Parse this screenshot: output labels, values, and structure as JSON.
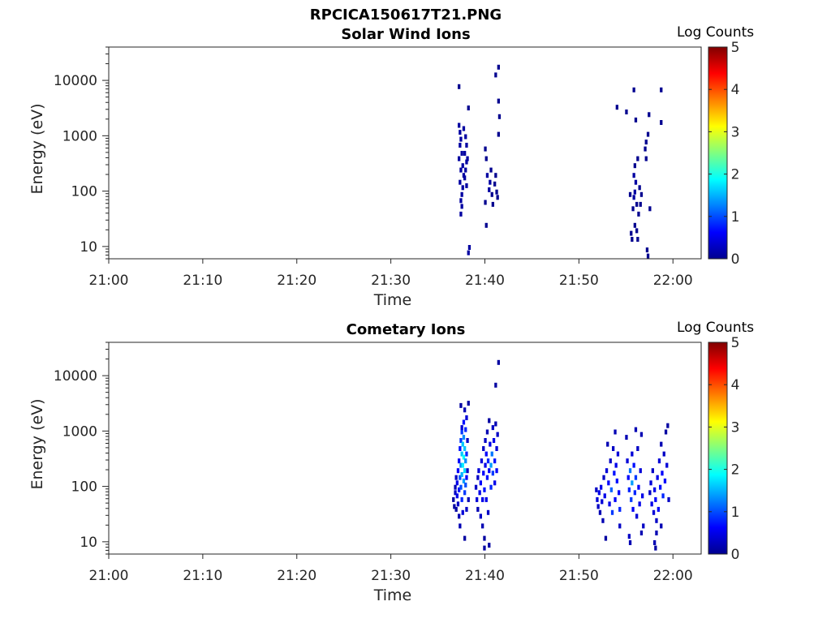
{
  "figure": {
    "title": "RPCICA150617T21.PNG"
  },
  "colors": {
    "axis": "#262626",
    "colormap": [
      "#00008f",
      "#0000ff",
      "#0080ff",
      "#00ffff",
      "#80ff80",
      "#ffff00",
      "#ff8000",
      "#ff0000",
      "#800000"
    ]
  },
  "chart_data": [
    {
      "type": "heatmap",
      "title": "Solar Wind Ions",
      "xlabel": "Time",
      "ylabel": "Energy (eV)",
      "x_ticks": [
        "21:00",
        "21:10",
        "21:20",
        "21:30",
        "21:40",
        "21:50",
        "22:00"
      ],
      "y_ticks": [
        "10",
        "100",
        "1000",
        "10000"
      ],
      "y_scale": "log",
      "xlim": [
        "21:00",
        "22:03"
      ],
      "ylim": [
        6,
        40000
      ],
      "colorbar": {
        "label": "Log Counts",
        "ticks": [
          "0",
          "1",
          "2",
          "3",
          "4",
          "5"
        ],
        "range": [
          0,
          5
        ]
      },
      "cells": [
        [
          37.2,
          8000,
          0
        ],
        [
          37.2,
          1600,
          0.1
        ],
        [
          37.3,
          1200,
          0.1
        ],
        [
          37.4,
          900,
          0.1
        ],
        [
          37.3,
          700,
          0.1
        ],
        [
          37.5,
          500,
          0.1
        ],
        [
          37.2,
          400,
          0.1
        ],
        [
          37.6,
          300,
          0.1
        ],
        [
          37.4,
          250,
          0.1
        ],
        [
          37.7,
          200,
          0.1
        ],
        [
          37.3,
          150,
          0.1
        ],
        [
          37.6,
          120,
          0.1
        ],
        [
          37.5,
          90,
          0.1
        ],
        [
          37.4,
          70,
          0.1
        ],
        [
          37.5,
          55,
          0.1
        ],
        [
          37.4,
          40,
          0.1
        ],
        [
          37.9,
          1000,
          0.1
        ],
        [
          38.0,
          700,
          0.1
        ],
        [
          37.8,
          500,
          0.1
        ],
        [
          38.0,
          350,
          0.1
        ],
        [
          37.9,
          250,
          0.1
        ],
        [
          37.8,
          180,
          0.1
        ],
        [
          38.0,
          130,
          0.1
        ],
        [
          37.7,
          1400,
          0.1
        ],
        [
          38.1,
          400,
          0.1
        ],
        [
          38.2,
          3300,
          0
        ],
        [
          38.3,
          10,
          0.1
        ],
        [
          38.2,
          8,
          0.1
        ],
        [
          40.0,
          600,
          0
        ],
        [
          40.1,
          400,
          0
        ],
        [
          40.2,
          200,
          0.1
        ],
        [
          40.5,
          150,
          0.1
        ],
        [
          40.4,
          110,
          0.1
        ],
        [
          40.6,
          250,
          0
        ],
        [
          40.7,
          90,
          0
        ],
        [
          40.8,
          60,
          0
        ],
        [
          40.0,
          65,
          0
        ],
        [
          40.1,
          25,
          0
        ],
        [
          41.0,
          140,
          0
        ],
        [
          41.2,
          100,
          0
        ],
        [
          41.3,
          80,
          0
        ],
        [
          41.1,
          200,
          0
        ],
        [
          41.4,
          18000,
          0
        ],
        [
          41.1,
          13000,
          0
        ],
        [
          41.5,
          2300,
          0
        ],
        [
          41.4,
          1100,
          0
        ],
        [
          41.4,
          4400,
          0
        ],
        [
          54.0,
          3400,
          0
        ],
        [
          55.0,
          2800,
          0
        ],
        [
          56.0,
          2000,
          0
        ],
        [
          55.8,
          7000,
          0
        ],
        [
          56.2,
          400,
          0
        ],
        [
          55.9,
          300,
          0
        ],
        [
          55.8,
          200,
          0.1
        ],
        [
          56.0,
          150,
          0.1
        ],
        [
          55.9,
          100,
          0.1
        ],
        [
          55.8,
          80,
          0.1
        ],
        [
          56.1,
          60,
          0
        ],
        [
          55.7,
          50,
          0
        ],
        [
          56.3,
          40,
          0
        ],
        [
          55.9,
          25,
          0
        ],
        [
          56.1,
          20,
          0
        ],
        [
          56.2,
          14,
          0
        ],
        [
          56.4,
          120,
          0
        ],
        [
          56.6,
          90,
          0
        ],
        [
          56.5,
          60,
          0
        ],
        [
          57.1,
          800,
          0
        ],
        [
          57.0,
          600,
          0
        ],
        [
          57.1,
          400,
          0
        ],
        [
          57.3,
          1100,
          0
        ],
        [
          57.4,
          2500,
          0
        ],
        [
          57.2,
          9,
          0
        ],
        [
          57.3,
          7,
          0
        ],
        [
          55.6,
          14,
          0
        ],
        [
          55.5,
          18,
          0
        ],
        [
          55.4,
          90,
          0
        ],
        [
          57.5,
          50,
          0
        ],
        [
          58.7,
          1800,
          0
        ],
        [
          58.7,
          7000,
          0
        ]
      ]
    },
    {
      "type": "heatmap",
      "title": "Cometary Ions",
      "xlabel": "Time",
      "ylabel": "Energy (eV)",
      "x_ticks": [
        "21:00",
        "21:10",
        "21:20",
        "21:30",
        "21:40",
        "21:50",
        "22:00"
      ],
      "y_ticks": [
        "10",
        "100",
        "1000",
        "10000"
      ],
      "y_scale": "log",
      "xlim": [
        "21:00",
        "22:03"
      ],
      "ylim": [
        6,
        40000
      ],
      "colorbar": {
        "label": "Log Counts",
        "ticks": [
          "0",
          "1",
          "2",
          "3",
          "4",
          "5"
        ],
        "range": [
          0,
          5
        ]
      },
      "cells": [
        [
          36.6,
          60,
          0.1
        ],
        [
          36.7,
          45,
          0.1
        ],
        [
          36.8,
          100,
          0.2
        ],
        [
          36.8,
          80,
          0.3
        ],
        [
          36.9,
          40,
          0.1
        ],
        [
          36.9,
          150,
          0.3
        ],
        [
          37.0,
          70,
          0.5
        ],
        [
          37.0,
          120,
          0.5
        ],
        [
          37.1,
          200,
          0.6
        ],
        [
          37.1,
          50,
          0.3
        ],
        [
          37.2,
          300,
          0.6
        ],
        [
          37.2,
          90,
          0.7
        ],
        [
          37.2,
          30,
          0.2
        ],
        [
          37.3,
          500,
          0.7
        ],
        [
          37.3,
          150,
          1.0
        ],
        [
          37.3,
          20,
          0.2
        ],
        [
          37.4,
          700,
          0.9
        ],
        [
          37.4,
          250,
          1.3
        ],
        [
          37.4,
          100,
          1.0
        ],
        [
          37.5,
          1000,
          0.9
        ],
        [
          37.5,
          400,
          1.6
        ],
        [
          37.5,
          170,
          1.5
        ],
        [
          37.5,
          60,
          0.8
        ],
        [
          37.6,
          600,
          1.6
        ],
        [
          37.6,
          250,
          1.8
        ],
        [
          37.6,
          35,
          0.4
        ],
        [
          37.7,
          1500,
          0.7
        ],
        [
          37.7,
          800,
          1.3
        ],
        [
          37.7,
          350,
          1.9
        ],
        [
          37.7,
          130,
          1.4
        ],
        [
          37.8,
          2500,
          0.2
        ],
        [
          37.8,
          500,
          1.6
        ],
        [
          37.8,
          200,
          1.7
        ],
        [
          37.8,
          80,
          0.9
        ],
        [
          37.8,
          12,
          0.1
        ],
        [
          37.9,
          1100,
          0.8
        ],
        [
          37.9,
          300,
          1.3
        ],
        [
          37.9,
          110,
          1.0
        ],
        [
          38.0,
          1800,
          0.4
        ],
        [
          38.0,
          400,
          0.8
        ],
        [
          38.0,
          150,
          0.6
        ],
        [
          38.0,
          40,
          0.3
        ],
        [
          38.1,
          700,
          0.3
        ],
        [
          38.1,
          200,
          0.3
        ],
        [
          38.2,
          3300,
          0.1
        ],
        [
          38.2,
          60,
          0.2
        ],
        [
          37.4,
          3000,
          0.1
        ],
        [
          37.5,
          1200,
          0.4
        ],
        [
          39.0,
          100,
          0.3
        ],
        [
          39.1,
          60,
          0.4
        ],
        [
          39.2,
          40,
          0.2
        ],
        [
          39.2,
          150,
          0.3
        ],
        [
          39.3,
          200,
          0.4
        ],
        [
          39.4,
          80,
          0.5
        ],
        [
          39.5,
          120,
          0.6
        ],
        [
          39.5,
          30,
          0.3
        ],
        [
          39.6,
          300,
          0.4
        ],
        [
          39.7,
          60,
          0.5
        ],
        [
          39.7,
          20,
          0.2
        ],
        [
          39.8,
          500,
          0.3
        ],
        [
          39.8,
          180,
          0.6
        ],
        [
          39.9,
          90,
          0.7
        ],
        [
          39.9,
          12,
          0.1
        ],
        [
          40.0,
          700,
          0.3
        ],
        [
          40.0,
          250,
          0.5
        ],
        [
          40.1,
          400,
          0.6
        ],
        [
          40.1,
          60,
          0.5
        ],
        [
          40.2,
          1000,
          0.2
        ],
        [
          40.2,
          150,
          0.7
        ],
        [
          40.3,
          300,
          0.8
        ],
        [
          40.3,
          35,
          0.3
        ],
        [
          40.4,
          200,
          0.6
        ],
        [
          40.5,
          600,
          0.5
        ],
        [
          40.6,
          250,
          1.4
        ],
        [
          40.6,
          100,
          0.8
        ],
        [
          40.7,
          400,
          1.2
        ],
        [
          40.8,
          1200,
          0.3
        ],
        [
          40.8,
          180,
          0.9
        ],
        [
          40.9,
          700,
          0.5
        ],
        [
          41.0,
          300,
          0.7
        ],
        [
          41.0,
          120,
          0.5
        ],
        [
          41.1,
          1400,
          0.2
        ],
        [
          41.2,
          500,
          0.4
        ],
        [
          41.2,
          200,
          0.6
        ],
        [
          41.3,
          900,
          0.3
        ],
        [
          41.4,
          18000,
          0.1
        ],
        [
          41.1,
          7000,
          0.1
        ],
        [
          40.4,
          1600,
          0.1
        ],
        [
          39.9,
          8,
          0.1
        ],
        [
          40.4,
          9,
          0.1
        ],
        [
          51.8,
          90,
          0.3
        ],
        [
          51.9,
          60,
          0.4
        ],
        [
          52.0,
          45,
          0.3
        ],
        [
          52.1,
          80,
          0.5
        ],
        [
          52.2,
          35,
          0.2
        ],
        [
          52.3,
          100,
          0.5
        ],
        [
          52.4,
          55,
          0.4
        ],
        [
          52.5,
          25,
          0.2
        ],
        [
          52.6,
          150,
          0.3
        ],
        [
          52.7,
          70,
          0.5
        ],
        [
          52.8,
          12,
          0.1
        ],
        [
          52.9,
          200,
          0.4
        ],
        [
          53.0,
          600,
          0.2
        ],
        [
          53.1,
          120,
          0.6
        ],
        [
          53.2,
          50,
          0.5
        ],
        [
          53.3,
          300,
          0.3
        ],
        [
          53.4,
          90,
          1.1
        ],
        [
          53.5,
          35,
          0.9
        ],
        [
          53.6,
          500,
          0.3
        ],
        [
          53.7,
          180,
          0.7
        ],
        [
          53.8,
          1000,
          0.2
        ],
        [
          53.8,
          60,
          0.6
        ],
        [
          53.9,
          250,
          0.5
        ],
        [
          54.0,
          130,
          0.7
        ],
        [
          54.1,
          400,
          0.4
        ],
        [
          54.2,
          80,
          0.6
        ],
        [
          54.3,
          40,
          0.8
        ],
        [
          54.3,
          20,
          0.3
        ],
        [
          55.0,
          800,
          0.2
        ],
        [
          55.1,
          300,
          0.4
        ],
        [
          55.2,
          150,
          0.6
        ],
        [
          55.3,
          90,
          0.8
        ],
        [
          55.4,
          200,
          1.2
        ],
        [
          55.5,
          60,
          0.9
        ],
        [
          55.6,
          120,
          1.4
        ],
        [
          55.6,
          400,
          0.4
        ],
        [
          55.7,
          40,
          0.6
        ],
        [
          55.8,
          250,
          0.7
        ],
        [
          55.9,
          80,
          0.8
        ],
        [
          56.0,
          1100,
          0.2
        ],
        [
          56.0,
          150,
          0.9
        ],
        [
          56.1,
          30,
          0.4
        ],
        [
          56.2,
          500,
          0.3
        ],
        [
          56.3,
          100,
          0.6
        ],
        [
          56.4,
          50,
          0.5
        ],
        [
          56.5,
          200,
          0.4
        ],
        [
          56.6,
          900,
          0.2
        ],
        [
          56.7,
          70,
          0.5
        ],
        [
          56.8,
          20,
          0.3
        ],
        [
          55.3,
          13,
          0.3
        ],
        [
          55.4,
          10,
          0.2
        ],
        [
          56.6,
          15,
          0.2
        ],
        [
          57.5,
          80,
          0.3
        ],
        [
          57.6,
          120,
          0.4
        ],
        [
          57.7,
          50,
          0.5
        ],
        [
          57.8,
          200,
          0.3
        ],
        [
          57.9,
          35,
          0.4
        ],
        [
          58.0,
          90,
          0.5
        ],
        [
          58.1,
          60,
          0.6
        ],
        [
          58.2,
          25,
          0.3
        ],
        [
          58.3,
          150,
          0.5
        ],
        [
          58.4,
          40,
          0.6
        ],
        [
          58.5,
          300,
          0.4
        ],
        [
          58.6,
          100,
          0.7
        ],
        [
          58.7,
          600,
          0.2
        ],
        [
          58.7,
          20,
          0.2
        ],
        [
          58.8,
          180,
          0.6
        ],
        [
          58.9,
          70,
          0.8
        ],
        [
          59.0,
          400,
          0.3
        ],
        [
          59.1,
          130,
          0.6
        ],
        [
          59.2,
          1000,
          0.1
        ],
        [
          59.3,
          250,
          0.4
        ],
        [
          59.4,
          1300,
          0.1
        ],
        [
          59.5,
          60,
          0.3
        ],
        [
          58.0,
          10,
          0.2
        ],
        [
          58.2,
          15,
          0.2
        ],
        [
          58.1,
          8,
          0.1
        ]
      ]
    }
  ]
}
